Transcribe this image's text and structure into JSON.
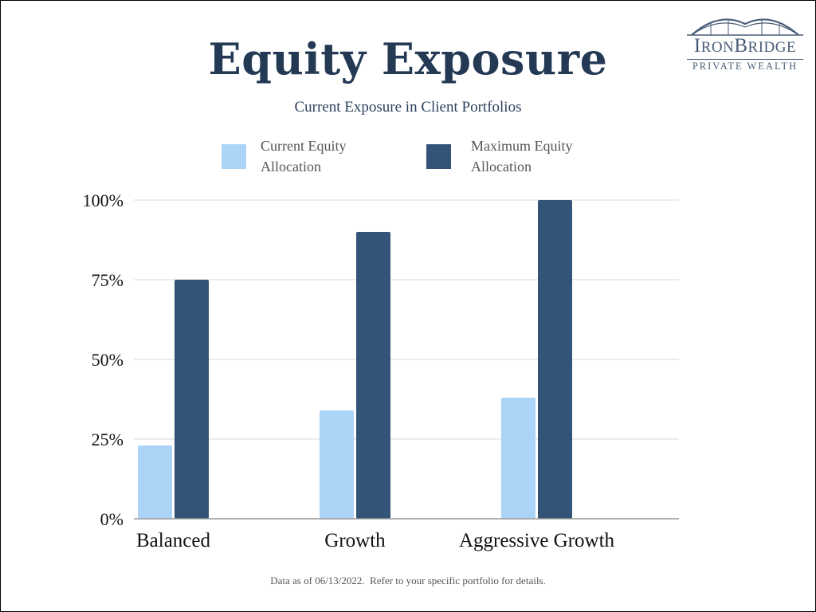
{
  "title": "Equity Exposure",
  "subtitle": "Current Exposure in Client Portfolios",
  "logo": {
    "name_prefix_large": "I",
    "name_part1_small": "RON",
    "name_mid_large": "B",
    "name_part2_small": "RIDGE",
    "tagline": "PRIVATE WEALTH",
    "color": "#4a5d78"
  },
  "footer": "Data as of 06/13/2022.  Refer to your specific portfolio for details.",
  "colors": {
    "current": "#acd4f7",
    "maximum": "#335476",
    "title": "#233954",
    "grid": "#d9d9d9",
    "axis": "#999999"
  },
  "chart_data": {
    "type": "bar",
    "categories": [
      "Balanced",
      "Growth",
      "Aggressive Growth"
    ],
    "series": [
      {
        "name": "Current Equity Allocation",
        "values": [
          23,
          34,
          38
        ],
        "color": "#acd4f7"
      },
      {
        "name": "Maximum Equity Allocation",
        "values": [
          75,
          90,
          100
        ],
        "color": "#335476"
      }
    ],
    "ylim": [
      0,
      100
    ],
    "yticks": [
      "0%",
      "25%",
      "50%",
      "75%",
      "100%"
    ],
    "ytick_values": [
      0,
      25,
      50,
      75,
      100
    ],
    "grid": true,
    "legend_position": "top",
    "legend": [
      {
        "line1": "Current Equity",
        "line2": "Allocation"
      },
      {
        "line1": "Maximum Equity",
        "line2": "Allocation"
      }
    ]
  }
}
